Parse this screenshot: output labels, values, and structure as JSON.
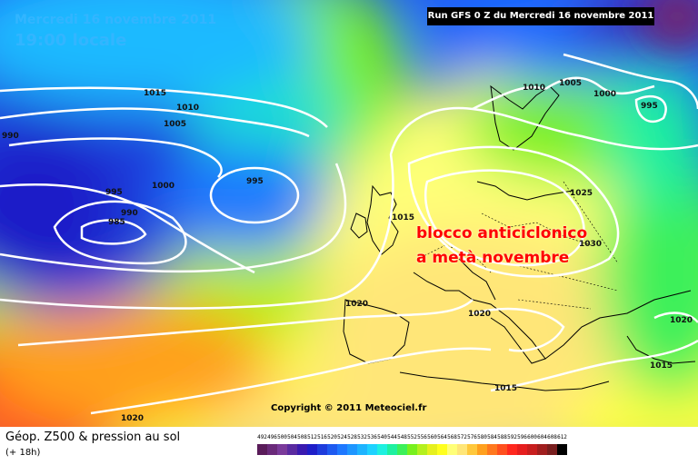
{
  "header": {
    "date": "Mercredi 16 novembre 2011",
    "time": "19:00 locale",
    "run": "Run GFS 0 Z du Mercredi 16 novembre 2011"
  },
  "annotation": {
    "line1": "blocco anticiclonico",
    "line2": "a metà novembre",
    "color": "#ff0000"
  },
  "isobars": [
    "1015",
    "1010",
    "1005",
    "990",
    "995",
    "1000",
    "995",
    "990",
    "985",
    "1015",
    "1030",
    "1025",
    "1010",
    "1005",
    "1000",
    "995",
    "1020",
    "1020",
    "1020",
    "1015",
    "1015",
    "1020"
  ],
  "copyright": "Copyright © 2011 Meteociel.fr",
  "footer": {
    "parameter": "Géop. Z500 & pression au sol",
    "forecast_hour": "(+ 18h)"
  },
  "scale": {
    "labels": [
      "492",
      "496",
      "500",
      "504",
      "508",
      "512",
      "516",
      "520",
      "524",
      "528",
      "532",
      "536",
      "540",
      "544",
      "548",
      "552",
      "556",
      "560",
      "564",
      "568",
      "572",
      "576",
      "580",
      "584",
      "588",
      "592",
      "596",
      "600",
      "604",
      "608",
      "612"
    ],
    "colors": [
      "#5a1c5a",
      "#6a2a7a",
      "#7a3a9a",
      "#5a2aa0",
      "#3a1ab0",
      "#1e1ec8",
      "#1e3cdc",
      "#1e5af0",
      "#1e78ff",
      "#1e96ff",
      "#1eb4ff",
      "#1ed2ff",
      "#1ef0e0",
      "#1ef0a0",
      "#3cf05a",
      "#78f01e",
      "#b4f01e",
      "#e6f01e",
      "#ffff1e",
      "#ffff78",
      "#ffe678",
      "#ffc83c",
      "#ffa01e",
      "#ff781e",
      "#ff501e",
      "#ff281e",
      "#e61e1e",
      "#c81e1e",
      "#a01e1e",
      "#781e1e",
      "#000000"
    ]
  }
}
